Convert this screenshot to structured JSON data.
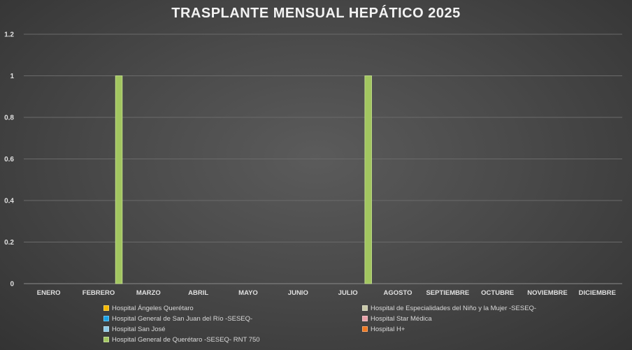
{
  "chart_data": {
    "type": "bar",
    "title": "TRASPLANTE MENSUAL HEPÁTICO 2025",
    "categories": [
      "ENERO",
      "FEBRERO",
      "MARZO",
      "ABRIL",
      "MAYO",
      "JUNIO",
      "JULIO",
      "AGOSTO",
      "SEPTIEMBRE",
      "OCTUBRE",
      "NOVIEMBRE",
      "DICIEMBRE"
    ],
    "ylim": [
      0,
      1.2
    ],
    "yticks": [
      "0",
      "0.2",
      "0.4",
      "0.6",
      "0.8",
      "1",
      "1.2"
    ],
    "grid": true,
    "legend_position": "bottom",
    "series": [
      {
        "name": "Hospital Ángeles Querétaro",
        "color": "#f5b800",
        "values": [
          0,
          0,
          0,
          0,
          0,
          0,
          0,
          0,
          0,
          0,
          0,
          0
        ]
      },
      {
        "name": "Hospital de Especialidades del Niño y la Mujer -SESEQ-",
        "color": "#c8c8a8",
        "values": [
          0,
          0,
          0,
          0,
          0,
          0,
          0,
          0,
          0,
          0,
          0,
          0
        ]
      },
      {
        "name": "Hospital General de San Juan del Río -SESEQ-",
        "color": "#1aa3e8",
        "values": [
          0,
          0,
          0,
          0,
          0,
          0,
          0,
          0,
          0,
          0,
          0,
          0
        ]
      },
      {
        "name": "Hospital Star Médica",
        "color": "#e8a0a8",
        "values": [
          0,
          0,
          0,
          0,
          0,
          0,
          0,
          0,
          0,
          0,
          0,
          0
        ]
      },
      {
        "name": "Hospital San José",
        "color": "#8ecae6",
        "values": [
          0,
          0,
          0,
          0,
          0,
          0,
          0,
          0,
          0,
          0,
          0,
          0
        ]
      },
      {
        "name": "Hospital H+",
        "color": "#f07820",
        "values": [
          0,
          0,
          0,
          0,
          0,
          0,
          0,
          0,
          0,
          0,
          0,
          0
        ]
      },
      {
        "name": "Hospital General de Querétaro -SESEQ- RNT 750",
        "color": "#a2c660",
        "values": [
          0,
          1,
          0,
          0,
          0,
          0,
          1,
          0,
          0,
          0,
          0,
          0
        ]
      }
    ]
  }
}
